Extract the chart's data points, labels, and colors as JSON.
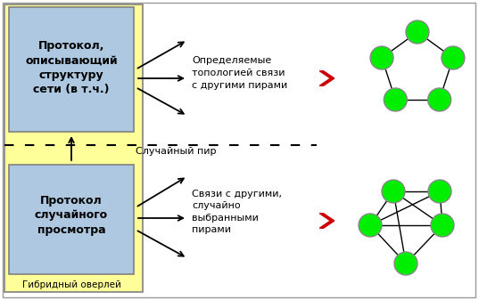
{
  "bg_color": "#ffffff",
  "yellow_bg": "#ffff99",
  "blue_box_color": "#adc8e0",
  "border_color": "#808080",
  "yellow_border": "#808080",
  "green_node": "#00ee00",
  "node_edge": "#888888",
  "red_chevron": "#cc0000",
  "arrow_color": "#000000",
  "dashed_color": "#000000",
  "box1_text": "Протокол,\nописывающий\nструктуру\nсети (в т.ч.)",
  "box2_text": "Протокол\nслучайного\nпросмотра",
  "label_bottom": "Гибридный оверлей",
  "dashed_label": "Случайный пир",
  "text_top": "Определяемые\nтопологией связи\nс другими пирами",
  "text_bottom": "Связи с другими,\nслучайно\nвыбранными\nпирами",
  "fig_width": 5.37,
  "fig_height": 3.37,
  "dpi": 100
}
